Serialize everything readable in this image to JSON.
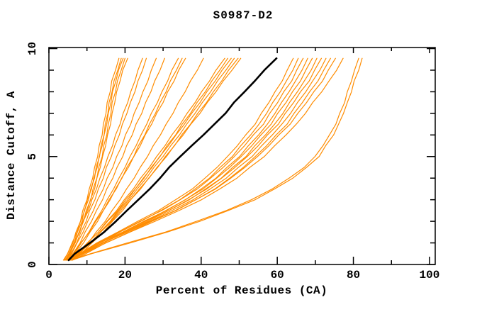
{
  "header": {
    "title": "S0987-D2"
  },
  "axes": {
    "x": {
      "label": "Percent of Residues (CA)",
      "min": 0,
      "max": 100,
      "major_ticks": [
        0,
        20,
        40,
        60,
        80,
        100
      ],
      "minor_ticks": [
        10,
        30,
        50,
        70,
        90
      ]
    },
    "y": {
      "label": "Distance Cutoff, A",
      "min": 0,
      "max": 10,
      "major_ticks": [
        0,
        5,
        10
      ],
      "minor_ticks": [
        1,
        2,
        3,
        4,
        6,
        7,
        8,
        9
      ]
    }
  },
  "colors": {
    "model_curve": "#ff8c00",
    "highlight_curve": "#000000",
    "axis": "#000000",
    "background": "#ffffff"
  },
  "chart_data": {
    "type": "line",
    "title": "S0987-D2",
    "xlabel": "Percent of Residues (CA)",
    "ylabel": "Distance Cutoff, A",
    "xlim": [
      0,
      101.5
    ],
    "ylim": [
      0,
      10.05
    ],
    "grid": false,
    "legend": null,
    "cutoffs": [
      0.2,
      0.5,
      1,
      1.5,
      2,
      2.5,
      3,
      3.5,
      4,
      4.5,
      5,
      5.5,
      6,
      6.5,
      7,
      7.5,
      8,
      8.5,
      9,
      9.55
    ],
    "series": [
      {
        "name": "curve-01",
        "role": "model",
        "x": [
          4.0,
          4.9,
          6.3,
          7.1,
          8.3,
          8.9,
          10.0,
          10.6,
          11.5,
          12.0,
          12.8,
          13.2,
          14.0,
          14.3,
          15.0,
          15.3,
          16.1,
          16.5,
          17.5,
          18.4
        ]
      },
      {
        "name": "curve-02",
        "role": "model",
        "x": [
          4.3,
          5.2,
          6.6,
          7.5,
          8.7,
          9.3,
          10.4,
          11.0,
          12.0,
          12.4,
          13.3,
          13.7,
          14.5,
          14.8,
          15.5,
          15.8,
          16.6,
          17.1,
          18.1,
          19.0
        ]
      },
      {
        "name": "curve-03",
        "role": "model",
        "x": [
          3.8,
          4.9,
          6.1,
          7.4,
          8.3,
          9.4,
          10.1,
          11.2,
          11.8,
          12.7,
          13.2,
          14.0,
          14.5,
          15.2,
          15.6,
          16.3,
          16.7,
          17.6,
          18.3,
          19.5
        ]
      },
      {
        "name": "curve-04",
        "role": "model",
        "x": [
          4.5,
          5.4,
          6.9,
          7.9,
          9.1,
          9.8,
          11.0,
          11.6,
          12.6,
          13.1,
          14.0,
          14.4,
          15.2,
          15.6,
          16.3,
          16.6,
          17.5,
          18.0,
          19.0,
          20.0
        ]
      },
      {
        "name": "curve-05",
        "role": "model",
        "x": [
          4.2,
          5.4,
          6.6,
          8.0,
          8.9,
          10.1,
          10.9,
          12.0,
          12.6,
          13.5,
          14.1,
          14.9,
          15.4,
          16.2,
          16.6,
          17.3,
          17.8,
          18.7,
          19.4,
          20.7
        ]
      },
      {
        "name": "curve-06",
        "role": "model",
        "x": [
          4.6,
          5.6,
          6.7,
          8.1,
          9.0,
          10.4,
          11.3,
          12.5,
          13.4,
          14.6,
          15.5,
          16.7,
          17.5,
          18.7,
          19.5,
          20.7,
          21.5,
          22.6,
          23.4,
          24.6
        ]
      },
      {
        "name": "curve-07",
        "role": "model",
        "x": [
          5.0,
          5.8,
          7.3,
          8.4,
          9.8,
          10.7,
          12.1,
          13.0,
          14.3,
          15.1,
          16.4,
          17.3,
          18.5,
          19.3,
          20.5,
          21.4,
          22.6,
          23.4,
          24.6,
          25.6
        ]
      },
      {
        "name": "curve-08",
        "role": "model",
        "x": [
          4.8,
          6.0,
          7.4,
          9.0,
          10.2,
          11.7,
          12.8,
          14.3,
          15.3,
          16.8,
          17.8,
          19.2,
          20.1,
          21.5,
          22.4,
          23.7,
          24.7,
          26.0,
          26.9,
          28.2
        ]
      },
      {
        "name": "curve-09",
        "role": "model",
        "x": [
          5.2,
          6.3,
          8.2,
          9.5,
          11.2,
          12.5,
          14.1,
          15.2,
          16.8,
          17.9,
          19.4,
          20.4,
          21.9,
          22.9,
          24.4,
          25.4,
          26.8,
          27.8,
          29.2,
          30.4
        ]
      },
      {
        "name": "curve-10",
        "role": "model",
        "x": [
          5.0,
          6.7,
          8.5,
          10.5,
          12.1,
          13.9,
          15.3,
          17.0,
          18.4,
          20.0,
          21.3,
          22.9,
          24.2,
          25.7,
          26.9,
          28.5,
          29.7,
          31.2,
          32.3,
          34.0
        ]
      },
      {
        "name": "curve-11",
        "role": "model",
        "x": [
          5.4,
          6.9,
          9.1,
          10.8,
          12.8,
          14.3,
          16.1,
          17.5,
          19.2,
          20.5,
          22.3,
          23.5,
          25.2,
          26.4,
          28.0,
          29.2,
          30.8,
          31.9,
          33.5,
          35.0
        ]
      },
      {
        "name": "curve-12",
        "role": "model",
        "x": [
          4.7,
          6.5,
          8.4,
          10.6,
          12.3,
          14.3,
          15.8,
          17.7,
          19.1,
          20.9,
          22.3,
          24.0,
          25.3,
          27.0,
          28.3,
          30.0,
          31.2,
          32.9,
          34.1,
          35.9
        ]
      },
      {
        "name": "curve-13",
        "role": "model",
        "x": [
          5.6,
          7.6,
          10.4,
          12.4,
          14.8,
          16.6,
          18.7,
          20.4,
          22.4,
          24.0,
          25.9,
          27.4,
          29.3,
          30.8,
          32.6,
          34.0,
          35.8,
          37.2,
          39.0,
          40.6
        ]
      },
      {
        "name": "curve-14",
        "role": "model",
        "x": [
          5.2,
          7.5,
          10.1,
          13.0,
          15.2,
          17.8,
          19.8,
          22.2,
          24.1,
          26.4,
          28.3,
          30.5,
          32.3,
          34.5,
          36.3,
          38.4,
          40.1,
          42.2,
          43.9,
          46.2
        ]
      },
      {
        "name": "curve-15",
        "role": "model",
        "x": [
          5.8,
          7.9,
          11.0,
          13.4,
          16.1,
          18.2,
          20.7,
          22.7,
          25.0,
          26.9,
          29.2,
          31.0,
          33.3,
          35.0,
          37.2,
          38.9,
          41.1,
          42.8,
          44.9,
          47.0
        ]
      },
      {
        "name": "curve-16",
        "role": "model",
        "x": [
          4.9,
          7.3,
          10.1,
          13.0,
          15.4,
          18.1,
          20.2,
          22.7,
          24.8,
          27.1,
          29.1,
          31.4,
          33.4,
          35.6,
          37.5,
          39.7,
          41.5,
          43.7,
          45.5,
          47.9
        ]
      },
      {
        "name": "curve-17",
        "role": "model",
        "x": [
          5.5,
          7.7,
          10.9,
          13.5,
          16.3,
          18.5,
          21.1,
          23.2,
          25.6,
          27.6,
          30.0,
          32.0,
          34.3,
          36.2,
          38.4,
          40.3,
          42.5,
          44.3,
          46.5,
          48.7
        ]
      },
      {
        "name": "curve-18",
        "role": "model",
        "x": [
          6.0,
          8.5,
          11.3,
          14.3,
          16.7,
          19.4,
          21.5,
          24.1,
          26.2,
          28.6,
          30.6,
          33.0,
          34.9,
          37.2,
          39.1,
          41.4,
          43.2,
          45.4,
          47.2,
          49.7
        ]
      },
      {
        "name": "curve-19",
        "role": "model",
        "x": [
          5.3,
          7.6,
          10.9,
          13.6,
          16.5,
          18.9,
          21.5,
          23.8,
          26.3,
          28.4,
          30.9,
          32.9,
          35.3,
          37.3,
          39.7,
          41.6,
          43.9,
          45.8,
          48.1,
          50.4
        ]
      },
      {
        "name": "curve-20",
        "role": "model",
        "x": [
          5.0,
          8.1,
          12.6,
          18.1,
          23.3,
          28.8,
          33.3,
          37.7,
          41.0,
          44.2,
          46.9,
          49.5,
          51.7,
          54.2,
          55.8,
          57.8,
          59.4,
          61.3,
          62.6,
          64.2
        ]
      },
      {
        "name": "curve-21",
        "role": "model",
        "x": [
          5.5,
          8.4,
          13.4,
          18.6,
          24.2,
          29.4,
          34.4,
          38.4,
          42.2,
          45.0,
          48.2,
          50.4,
          53.0,
          55.2,
          57.2,
          58.8,
          60.8,
          62.4,
          64.1,
          65.5
        ]
      },
      {
        "name": "curve-22",
        "role": "model",
        "x": [
          4.8,
          8.0,
          12.8,
          18.5,
          23.9,
          29.7,
          34.5,
          39.0,
          42.5,
          45.8,
          48.7,
          51.4,
          53.7,
          56.4,
          58.0,
          60.1,
          61.7,
          63.8,
          65.1,
          66.8
        ]
      },
      {
        "name": "curve-23",
        "role": "model",
        "x": [
          6.0,
          9.0,
          14.2,
          19.5,
          25.3,
          30.7,
          35.9,
          40.0,
          43.9,
          46.8,
          50.1,
          52.4,
          55.1,
          57.4,
          59.4,
          61.1,
          63.1,
          64.8,
          66.5,
          68.0
        ]
      },
      {
        "name": "curve-24",
        "role": "model",
        "x": [
          5.2,
          8.5,
          13.4,
          19.4,
          24.9,
          30.9,
          35.8,
          40.5,
          44.1,
          47.5,
          50.5,
          53.3,
          55.7,
          58.4,
          60.1,
          62.3,
          64.0,
          66.1,
          67.5,
          69.2
        ]
      },
      {
        "name": "curve-25",
        "role": "model",
        "x": [
          5.8,
          8.9,
          14.3,
          19.9,
          25.9,
          31.5,
          36.9,
          41.2,
          45.3,
          48.3,
          51.8,
          54.1,
          56.9,
          59.3,
          61.5,
          63.2,
          65.3,
          67.1,
          68.9,
          70.4
        ]
      },
      {
        "name": "curve-26",
        "role": "model",
        "x": [
          4.6,
          8.1,
          13.2,
          19.4,
          25.3,
          31.5,
          36.7,
          41.5,
          45.4,
          48.9,
          52.1,
          55.0,
          57.4,
          60.3,
          62.1,
          64.3,
          66.1,
          68.4,
          69.8,
          71.6
        ]
      },
      {
        "name": "curve-27",
        "role": "model",
        "x": [
          5.4,
          8.7,
          14.3,
          20.1,
          26.4,
          32.3,
          37.9,
          42.4,
          46.6,
          49.8,
          53.4,
          55.9,
          58.7,
          61.2,
          63.5,
          65.3,
          67.5,
          69.3,
          71.2,
          72.8
        ]
      },
      {
        "name": "curve-28",
        "role": "model",
        "x": [
          6.2,
          9.7,
          14.9,
          21.2,
          27.1,
          33.4,
          38.6,
          43.6,
          47.5,
          51.1,
          54.2,
          57.2,
          59.7,
          62.6,
          64.4,
          66.6,
          68.5,
          70.7,
          72.2,
          74.0
        ]
      },
      {
        "name": "curve-29",
        "role": "model",
        "x": [
          5.0,
          8.6,
          14.0,
          20.6,
          26.7,
          33.2,
          38.6,
          43.8,
          47.8,
          51.5,
          54.8,
          57.8,
          60.4,
          63.4,
          65.4,
          67.7,
          69.6,
          71.9,
          73.4,
          75.3
        ]
      },
      {
        "name": "curve-30",
        "role": "model",
        "x": [
          5.6,
          9.1,
          15.0,
          21.3,
          27.9,
          34.2,
          40.1,
          44.9,
          49.4,
          52.8,
          56.6,
          59.3,
          62.3,
          65.0,
          67.4,
          69.3,
          71.7,
          73.6,
          75.6,
          77.3
        ]
      },
      {
        "name": "curve-31",
        "role": "model",
        "x": [
          5.5,
          10.9,
          20.6,
          30.6,
          38.8,
          46.6,
          53.2,
          58.7,
          63.1,
          67.1,
          69.9,
          72.0,
          73.7,
          75.4,
          76.4,
          77.7,
          78.4,
          79.5,
          80.3,
          81.4
        ]
      },
      {
        "name": "curve-32",
        "role": "model",
        "x": [
          6.0,
          11.2,
          21.4,
          31.1,
          39.7,
          47.1,
          54.2,
          59.3,
          64.1,
          67.7,
          71.0,
          72.7,
          74.8,
          76.1,
          77.4,
          78.4,
          79.5,
          80.2,
          81.4,
          82.3
        ]
      },
      {
        "name": "highlight-curve",
        "role": "highlight",
        "x": [
          5.2,
          6.8,
          10.8,
          14.5,
          17.6,
          20.5,
          23.5,
          26.5,
          29.2,
          31.6,
          34.5,
          37.5,
          40.6,
          43.5,
          46.4,
          48.6,
          51.4,
          54.1,
          56.6,
          59.8
        ]
      }
    ]
  }
}
